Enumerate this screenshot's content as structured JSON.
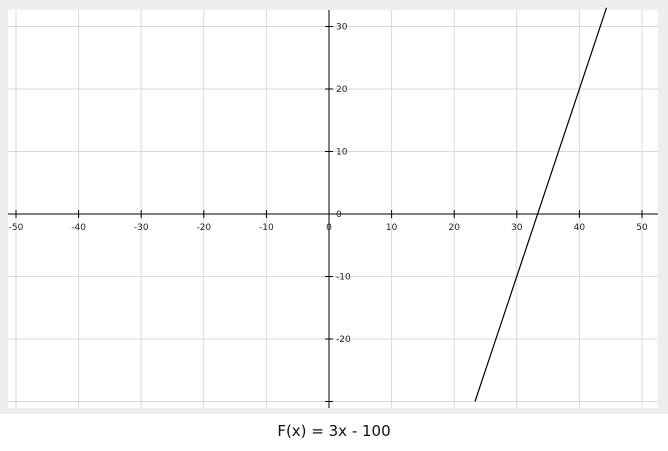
{
  "chart_data": {
    "type": "line",
    "title": "F(x) = 3x - 100",
    "xlabel": "",
    "ylabel": "",
    "xlim": [
      -50,
      50
    ],
    "ylim": [
      -30,
      30
    ],
    "x_ticks": [
      -50,
      -40,
      -30,
      -20,
      -10,
      0,
      10,
      20,
      30,
      40,
      50
    ],
    "y_ticks": [
      -30,
      -20,
      -10,
      0,
      10,
      20,
      30
    ],
    "x_tick_labels": [
      "-50",
      "-40",
      "-30",
      "-20",
      "-10",
      "0",
      "10",
      "20",
      "30",
      "40",
      "50"
    ],
    "y_tick_labels": [
      "",
      "-20",
      "-10",
      "0",
      "10",
      "20",
      "30"
    ],
    "grid": true,
    "function": {
      "slope": 3,
      "intercept": -100
    },
    "series": [
      {
        "x": [
          23.33,
          44.33
        ],
        "y": [
          -30,
          33
        ]
      }
    ]
  },
  "colors": {
    "frame_background": "#eeeeee",
    "plot_background": "#ffffff",
    "grid": "#d9d9d9",
    "axis": "#000000",
    "line": "#000000"
  }
}
